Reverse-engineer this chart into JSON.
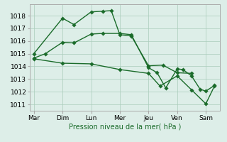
{
  "background_color": "#ddeee8",
  "plot_bg_color": "#ddeee8",
  "grid_color": "#aaccbb",
  "line_color": "#1a6b2a",
  "spine_color": "#aaaaaa",
  "xlabel": "Pression niveau de la mer( hPa )",
  "ylim": [
    1010.5,
    1018.9
  ],
  "xlim": [
    -0.15,
    6.5
  ],
  "yticks": [
    1011,
    1012,
    1013,
    1014,
    1015,
    1016,
    1017,
    1018
  ],
  "xtick_positions": [
    0,
    1,
    2,
    3,
    4,
    5,
    6
  ],
  "xtick_labels": [
    "Mar",
    "Dim",
    "Lun",
    "Mer",
    "Jeu",
    "Ven",
    "Sam"
  ],
  "series1_x": [
    0,
    1.0,
    1.4,
    2.0,
    2.4,
    2.7,
    3.0,
    3.4,
    4.0,
    4.5,
    5.0,
    5.5
  ],
  "series1_y": [
    1015.0,
    1017.8,
    1017.3,
    1018.3,
    1018.35,
    1018.4,
    1016.5,
    1016.4,
    1014.05,
    1014.1,
    1013.5,
    1013.45
  ],
  "series2_x": [
    0,
    0.4,
    1.0,
    1.4,
    2.0,
    2.4,
    3.0,
    3.4,
    4.0,
    4.3,
    4.6,
    5.0,
    5.2,
    5.5,
    5.8,
    6.0,
    6.3
  ],
  "series2_y": [
    1014.65,
    1015.0,
    1015.9,
    1015.85,
    1016.55,
    1016.6,
    1016.6,
    1016.5,
    1013.9,
    1013.5,
    1012.3,
    1013.8,
    1013.75,
    1013.25,
    1012.2,
    1012.05,
    1012.5
  ],
  "series3_x": [
    0,
    1.0,
    2.0,
    3.0,
    4.0,
    4.4,
    5.0,
    5.5,
    6.0,
    6.3
  ],
  "series3_y": [
    1014.6,
    1014.25,
    1014.2,
    1013.75,
    1013.45,
    1012.45,
    1013.25,
    1012.15,
    1011.05,
    1012.45
  ],
  "marker_size": 2.8,
  "linewidth": 1.0,
  "xlabel_fontsize": 7,
  "tick_fontsize": 6.5
}
